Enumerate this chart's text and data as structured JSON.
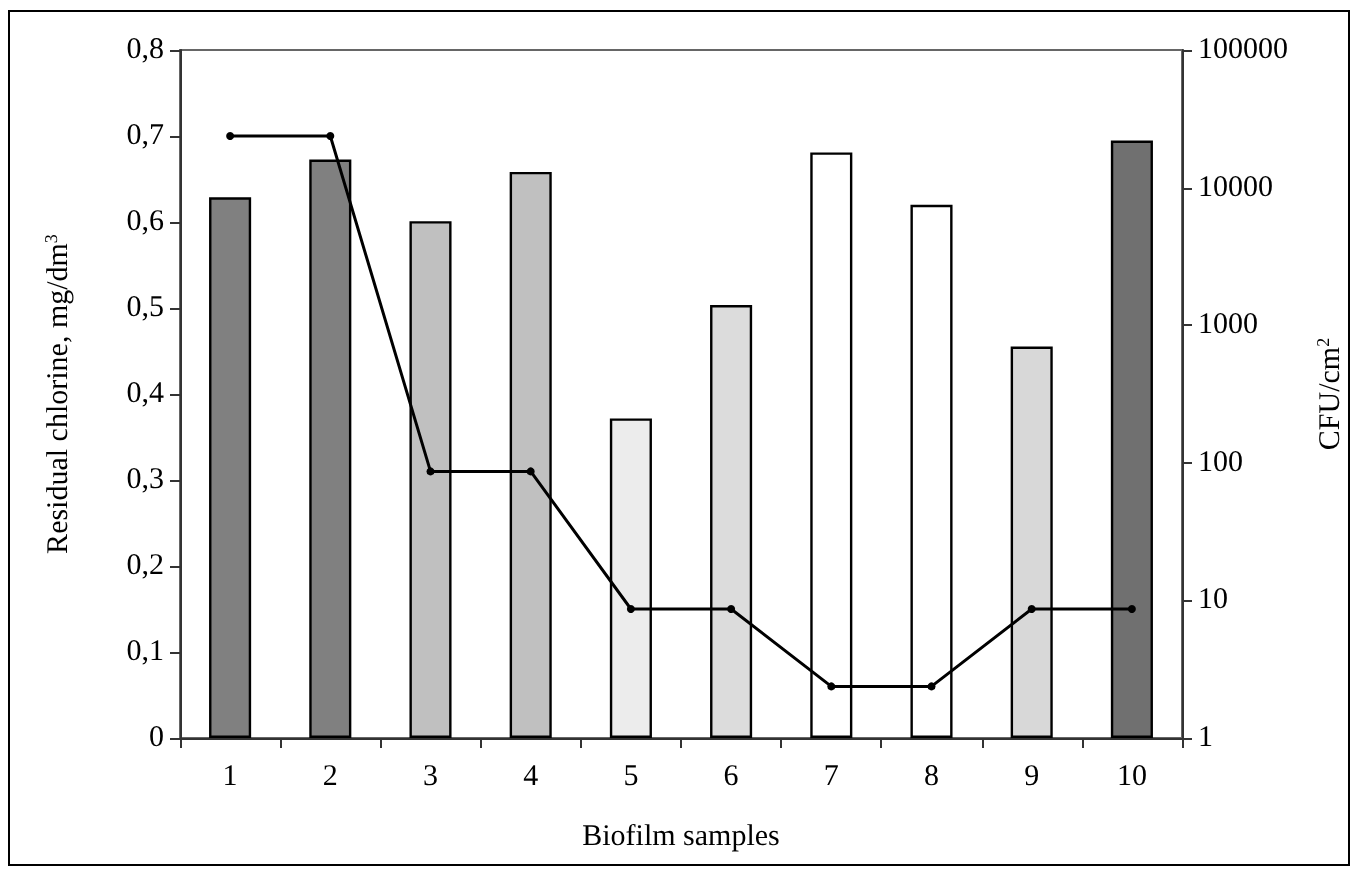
{
  "chart_data": {
    "type": "bar",
    "xlabel": "Biofilm samples",
    "ylabel": "Residual chlorine, mg/dm$^{3}$",
    "y2label": "CFU/cm$^{2}$",
    "categories": [
      "1",
      "2",
      "3",
      "4",
      "5",
      "6",
      "7",
      "8",
      "9",
      "10"
    ],
    "series": [
      {
        "axis": "y2",
        "colors": [
          "#808080",
          "#808080",
          "#c0c0c0",
          "#c0c0c0",
          "#ececec",
          "#dcdcdc",
          "#ffffff",
          "#ffffff",
          "#d8d8d8",
          "#707070"
        ],
        "values": [
          8500,
          16000,
          5700,
          13000,
          210,
          1400,
          18000,
          7500,
          700,
          22000
        ]
      },
      {
        "type": "line",
        "axis": "y",
        "color": "#000000",
        "marker": "circle",
        "values": [
          0.7,
          0.7,
          0.31,
          0.31,
          0.15,
          0.15,
          0.06,
          0.06,
          0.15,
          0.15
        ]
      }
    ],
    "ylim": [
      0,
      0.8
    ],
    "yticks": [
      0,
      {
        "value": 0.1,
        "label": "0,1"
      },
      {
        "value": 0.2,
        "label": "0,2"
      },
      {
        "value": 0.3,
        "label": "0,3"
      },
      {
        "value": 0.4,
        "label": "0,4"
      },
      {
        "value": 0.5,
        "label": "0,5"
      },
      {
        "value": 0.6,
        "label": "0,6"
      },
      {
        "value": 0.7,
        "label": "0,7"
      },
      {
        "value": 0.8,
        "label": "0,8"
      }
    ],
    "y2lim": [
      1,
      100000
    ],
    "y2ticks": [
      1,
      10,
      100,
      1000,
      10000,
      100000
    ],
    "log": "y2",
    "grid": false
  }
}
